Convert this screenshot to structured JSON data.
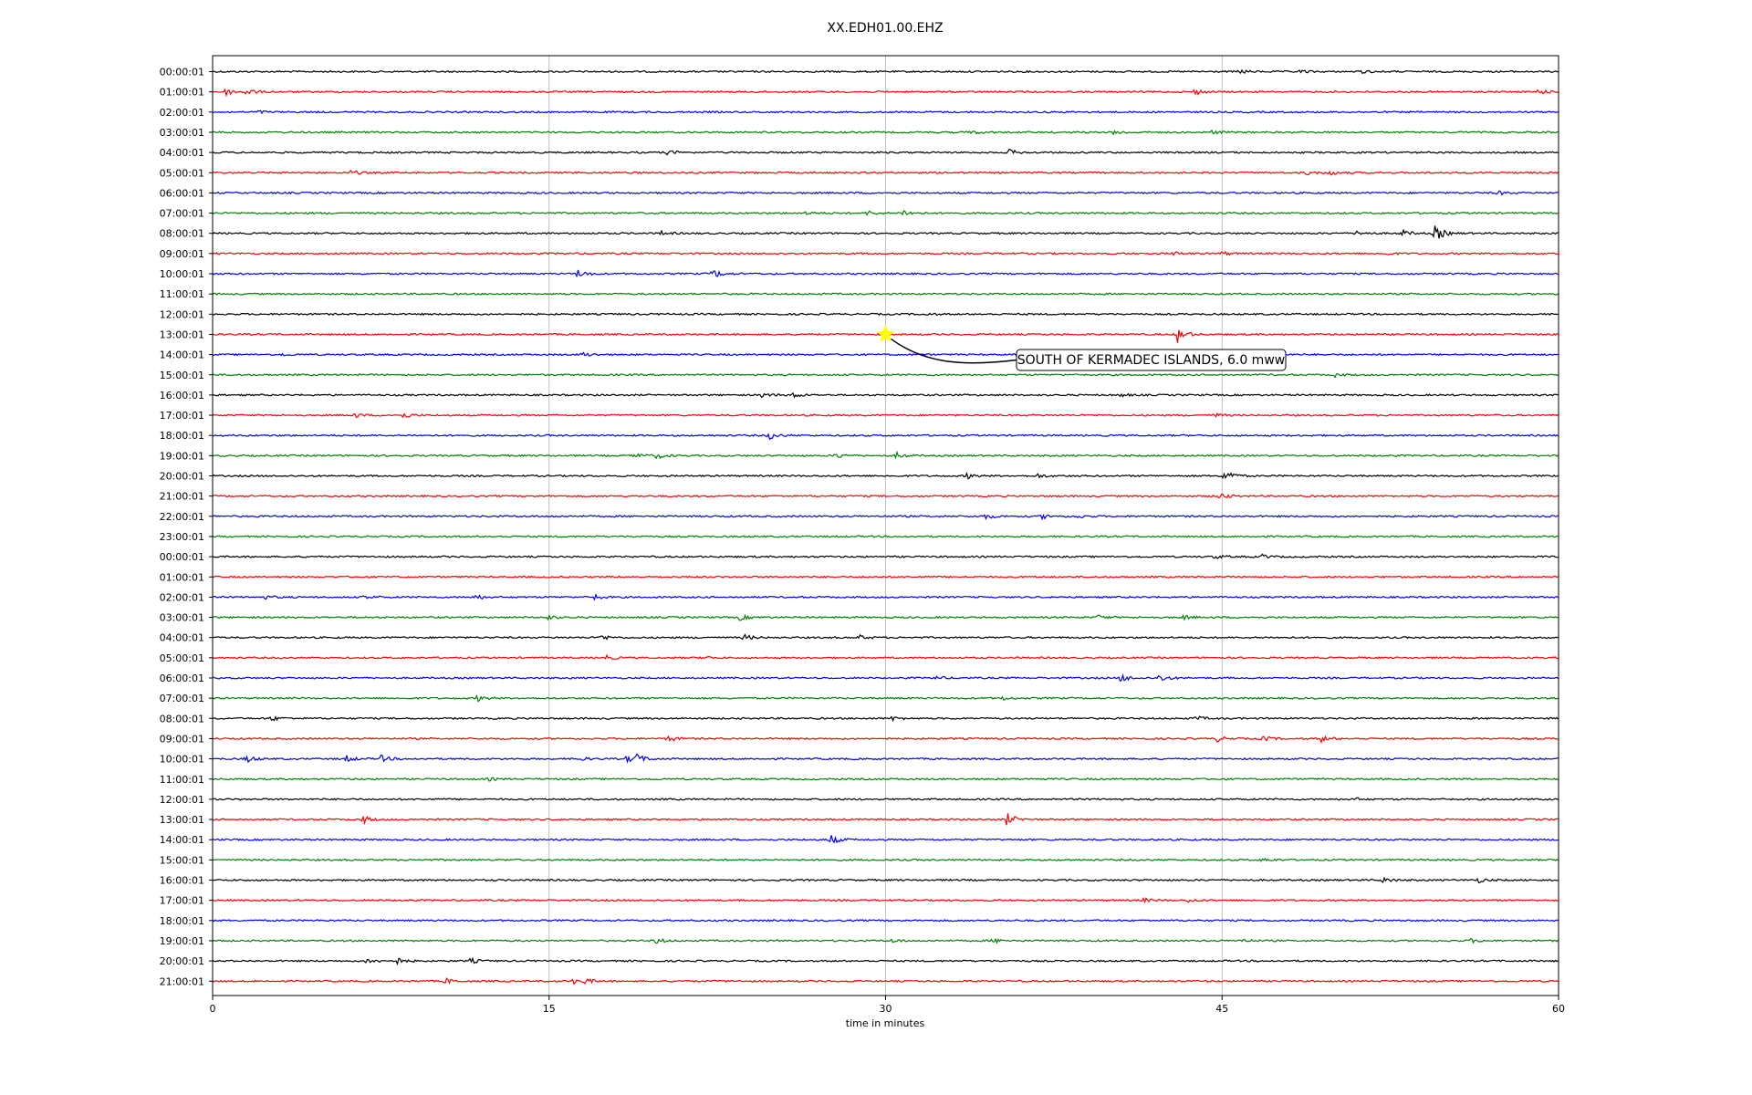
{
  "chart_data": {
    "type": "line",
    "title": "XX.EDH01.00.EHZ",
    "xlabel": "time in minutes",
    "ylabel": "",
    "xlim": [
      0,
      60
    ],
    "xticks": [
      0,
      15,
      30,
      45,
      60
    ],
    "grid": "vertical",
    "row_labels": [
      "00:00:01",
      "01:00:01",
      "02:00:01",
      "03:00:01",
      "04:00:01",
      "05:00:01",
      "06:00:01",
      "07:00:01",
      "08:00:01",
      "09:00:01",
      "10:00:01",
      "11:00:01",
      "12:00:01",
      "13:00:01",
      "14:00:01",
      "15:00:01",
      "16:00:01",
      "17:00:01",
      "18:00:01",
      "19:00:01",
      "20:00:01",
      "21:00:01",
      "22:00:01",
      "23:00:01",
      "00:00:01",
      "01:00:01",
      "02:00:01",
      "03:00:01",
      "04:00:01",
      "05:00:01",
      "06:00:01",
      "07:00:01",
      "08:00:01",
      "09:00:01",
      "10:00:01",
      "11:00:01",
      "12:00:01",
      "13:00:01",
      "14:00:01",
      "15:00:01",
      "16:00:01",
      "17:00:01",
      "18:00:01",
      "19:00:01",
      "20:00:01",
      "21:00:01"
    ],
    "color_cycle": [
      "#000000",
      "#ff0000",
      "#0000ff",
      "#008000"
    ],
    "events": [
      [
        [
          45.8,
          2
        ],
        [
          48.5,
          1.5
        ],
        [
          51.2,
          1.5
        ]
      ],
      [
        [
          0.6,
          3.5
        ],
        [
          1.5,
          3.5
        ],
        [
          43.8,
          3
        ],
        [
          59.1,
          3
        ]
      ],
      [
        [
          2,
          1.5
        ]
      ],
      [
        [
          33.8,
          2
        ],
        [
          40.2,
          2.5
        ],
        [
          44.5,
          2
        ]
      ],
      [
        [
          20.3,
          2.5
        ],
        [
          35.5,
          3
        ]
      ],
      [
        [
          6.2,
          2.5
        ],
        [
          48.8,
          2
        ],
        [
          49.8,
          2.5
        ]
      ],
      [
        [
          57.3,
          2
        ]
      ],
      [
        [
          26.5,
          2
        ],
        [
          29.2,
          2.5
        ],
        [
          30.8,
          3.5
        ]
      ],
      [
        [
          20,
          2
        ],
        [
          51,
          3
        ],
        [
          53,
          3.5
        ],
        [
          54.5,
          9
        ]
      ],
      [
        [
          42.8,
          2
        ],
        [
          45,
          2
        ],
        [
          52.2,
          2
        ]
      ],
      [
        [
          16.3,
          4.5
        ],
        [
          22.3,
          5
        ]
      ],
      [],
      [
        [
          31.7,
          1.5
        ]
      ],
      [
        [
          43,
          9
        ]
      ],
      [
        [
          3,
          1.5
        ],
        [
          16.5,
          2.5
        ]
      ],
      [
        [
          50,
          2
        ]
      ],
      [
        [
          24.5,
          2.5
        ],
        [
          25.8,
          3.5
        ],
        [
          40.5,
          1.5
        ]
      ],
      [
        [
          6.3,
          2.5
        ],
        [
          8.5,
          3
        ],
        [
          44.7,
          2
        ]
      ],
      [
        [
          24.8,
          4
        ]
      ],
      [
        [
          18.8,
          3
        ],
        [
          19.8,
          3
        ],
        [
          27.8,
          3
        ],
        [
          30.5,
          3
        ]
      ],
      [
        [
          33.6,
          3
        ],
        [
          36.8,
          2
        ],
        [
          45.1,
          8
        ]
      ],
      [
        [
          44.9,
          3.5
        ]
      ],
      [
        [
          34.4,
          3
        ],
        [
          37,
          2.5
        ],
        [
          38.5,
          2
        ]
      ],
      [],
      [
        [
          44.7,
          2
        ],
        [
          46.8,
          2
        ]
      ],
      [],
      [
        [
          2.4,
          2
        ],
        [
          6.8,
          2.5
        ],
        [
          11.7,
          3
        ],
        [
          16.9,
          4
        ]
      ],
      [
        [
          14.9,
          2.5
        ],
        [
          23.5,
          3
        ],
        [
          39.5,
          2.5
        ],
        [
          43.3,
          2
        ]
      ],
      [
        [
          17.3,
          3
        ],
        [
          23.7,
          3
        ],
        [
          28.8,
          2.5
        ]
      ],
      [
        [
          17.5,
          2.5
        ],
        [
          21.8,
          2
        ]
      ],
      [
        [
          32.2,
          2
        ],
        [
          40.5,
          4.5
        ],
        [
          42.2,
          4
        ]
      ],
      [
        [
          11.8,
          3
        ],
        [
          35.2,
          2
        ]
      ],
      [
        [
          2.6,
          2.5
        ],
        [
          30.3,
          2
        ],
        [
          43.8,
          2.5
        ]
      ],
      [
        [
          20.3,
          3.5
        ],
        [
          44.7,
          3.5
        ],
        [
          46.8,
          3
        ],
        [
          49.4,
          3.5
        ]
      ],
      [
        [
          1.5,
          4
        ],
        [
          5.9,
          4
        ],
        [
          7.5,
          3.5
        ],
        [
          16.2,
          3
        ],
        [
          18.5,
          4
        ],
        [
          18.9,
          4
        ]
      ],
      [
        [
          12.3,
          1.5
        ]
      ],
      [
        [
          50.8,
          2
        ]
      ],
      [
        [
          6.7,
          4
        ],
        [
          35.4,
          7
        ]
      ],
      [
        [
          27.5,
          6
        ]
      ],
      [
        [
          46.8,
          2
        ]
      ],
      [
        [
          52.2,
          3
        ],
        [
          56.4,
          2.5
        ]
      ],
      [
        [
          41.5,
          2
        ],
        [
          43.5,
          2
        ]
      ],
      [],
      [
        [
          19.7,
          3.5
        ],
        [
          30.3,
          2
        ],
        [
          34.8,
          2.5
        ],
        [
          45.8,
          2
        ],
        [
          56.1,
          2
        ]
      ],
      [
        [
          6.9,
          3
        ],
        [
          8.1,
          4.5
        ],
        [
          11.5,
          2.5
        ]
      ],
      [
        [
          10.4,
          3
        ],
        [
          16.1,
          2.5
        ],
        [
          16.6,
          2.5
        ]
      ]
    ],
    "annotation": {
      "text": "SOUTH OF KERMADEC ISLANDS, 6.0 mww",
      "marker_minute": 30,
      "marker_row": 13,
      "marker_color": "#ffff00"
    }
  }
}
